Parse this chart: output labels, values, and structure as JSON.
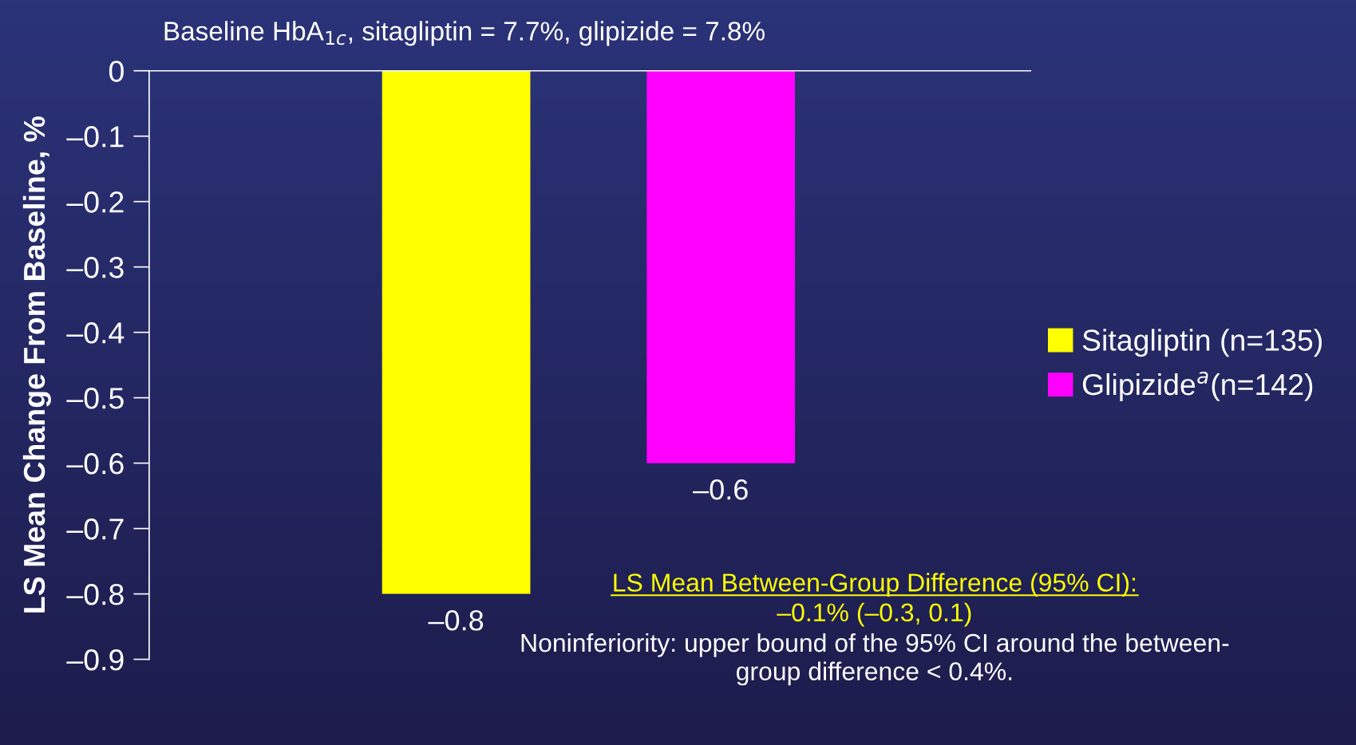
{
  "chart_data": {
    "type": "bar",
    "subtitle": "Baseline HbA$_{1c}$, sitagliptin = 7.7%, glipizide = 7.8%",
    "ylabel": "LS Mean Change From Baseline, %",
    "categories": [
      null,
      null
    ],
    "series": [
      {
        "name": "Sitagliptin (n=135)",
        "color": "#ffff00",
        "values": [
          -0.8,
          null
        ],
        "value_labels": [
          "–0.8",
          null
        ]
      },
      {
        "name": "Glipizide$^{a}$(n=142)",
        "color": "#ff00ff",
        "values": [
          null,
          -0.6
        ],
        "value_labels": [
          null,
          "–0.6"
        ]
      }
    ],
    "ylim": [
      -0.9,
      0
    ],
    "yticks": [
      0,
      {
        "value": -0.1,
        "label": "–0.1"
      },
      {
        "value": -0.2,
        "label": "–0.2"
      },
      {
        "value": -0.3,
        "label": "–0.3"
      },
      {
        "value": -0.4,
        "label": "–0.4"
      },
      {
        "value": -0.5,
        "label": "–0.5"
      },
      {
        "value": -0.6,
        "label": "–0.6"
      },
      {
        "value": -0.7,
        "label": "–0.7"
      },
      {
        "value": -0.8,
        "label": "–0.8"
      },
      {
        "value": -0.9,
        "label": "–0.9"
      }
    ],
    "grid": false,
    "legend": "right",
    "annotations": [
      "LS Mean Between-Group Difference (95% CI):",
      "–0.1% (–0.3, 0.1)",
      "Noninferiority: upper bound of the 95% CI around the between-\ngroup difference < 0.4%."
    ]
  }
}
